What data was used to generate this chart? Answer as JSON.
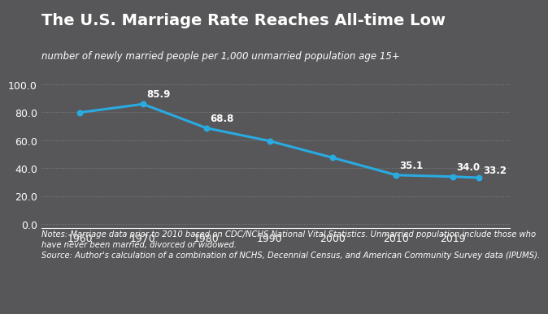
{
  "title": "The U.S. Marriage Rate Reaches All-time Low",
  "subtitle": "number of newly married people per 1,000 unmarried population age 15+",
  "x": [
    1960,
    1970,
    1980,
    1990,
    2000,
    2010,
    2019
  ],
  "y": [
    79.9,
    85.9,
    68.8,
    59.5,
    47.5,
    35.1,
    34.0
  ],
  "labels": [
    null,
    "85.9",
    "68.8",
    null,
    null,
    "35.1",
    "34.0"
  ],
  "extra_point_x": 2023,
  "extra_point_y": 33.2,
  "extra_label": "33.2",
  "line_color": "#29ABE2",
  "marker_color": "#29ABE2",
  "background_color": "#575759",
  "text_color": "#FFFFFF",
  "grid_color": "#888888",
  "yticks": [
    0.0,
    20.0,
    40.0,
    60.0,
    80.0,
    100.0
  ],
  "ylim": [
    -3,
    108
  ],
  "xlim": [
    1954,
    2028
  ],
  "xticks": [
    1960,
    1970,
    1980,
    1990,
    2000,
    2010,
    2019
  ],
  "notes_line1": "Notes: Marriage data prior to 2010 based on CDC/NCHS National Vital Statistics. Unmarried population include those who",
  "notes_line2": "have never been married, divorced or widowed.",
  "source_line": "Source: Author's calculation of a combination of NCHS, Decennial Census, and American Community Survey data (IPUMS).",
  "title_fontsize": 14,
  "subtitle_fontsize": 8.5,
  "axis_label_fontsize": 9,
  "annotation_fontsize": 8.5,
  "notes_fontsize": 7.2
}
